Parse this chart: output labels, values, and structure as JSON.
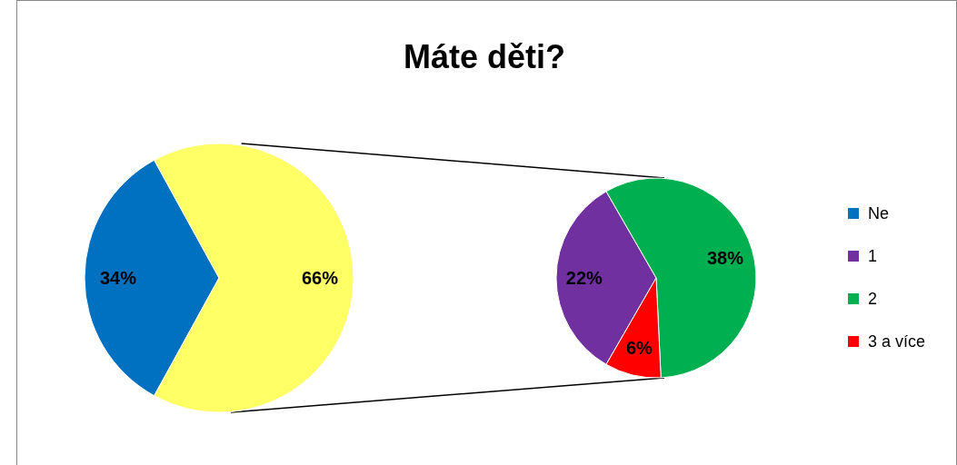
{
  "chart_data": [
    {
      "type": "pie",
      "title": "Máte děti?",
      "categories": [
        "Ne",
        null
      ],
      "values": [
        34,
        66
      ],
      "value_labels": [
        "34%",
        "66%"
      ],
      "colors": [
        "#0070c0",
        "#ffff66"
      ],
      "legend": "right"
    },
    {
      "type": "pie",
      "categories": [
        "1",
        "2",
        "3 a více"
      ],
      "values": [
        22,
        38,
        6
      ],
      "value_labels": [
        "22%",
        "38%",
        "6%"
      ],
      "colors": [
        "#7030a0",
        "#00b050",
        "#ff0000"
      ],
      "legend": "right"
    }
  ]
}
